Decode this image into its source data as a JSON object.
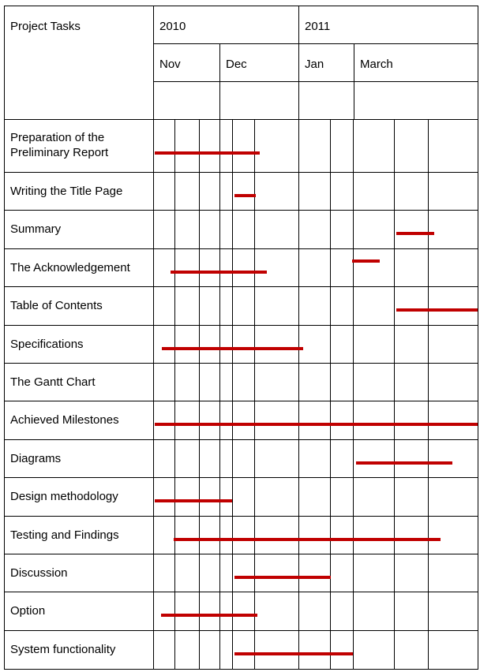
{
  "header": {
    "task_column_label": "Project Tasks",
    "years": [
      "2010",
      "2011"
    ],
    "months": [
      "Nov",
      "Dec",
      "Jan",
      "March"
    ]
  },
  "bar_color": "#c00000",
  "timeline_week_columns": 11,
  "tasks": [
    {
      "label": "Preparation of the Preliminary Report",
      "bars": [
        [
          0.07,
          5.13
        ]
      ]
    },
    {
      "label": "Writing the Title Page",
      "bars": [
        [
          4.1,
          5.04
        ]
      ]
    },
    {
      "label": "Summary",
      "bars": [
        [
          9.07,
          10.13
        ]
      ]
    },
    {
      "label": "The Acknowledgement",
      "bars": [
        [
          7.97,
          8.65
        ],
        [
          0.81,
          5.29
        ]
      ]
    },
    {
      "label": "Table of Contents",
      "bars": [
        [
          9.07,
          11
        ]
      ]
    },
    {
      "label": "Specifications",
      "bars": [
        [
          0.4,
          6.15
        ]
      ]
    },
    {
      "label": "The Gantt Chart",
      "bars": []
    },
    {
      "label": "Achieved Milestones",
      "bars": [
        [
          0.07,
          11
        ]
      ]
    },
    {
      "label": "Diagrams",
      "bars": [
        [
          8.08,
          10.5
        ]
      ]
    },
    {
      "label": "Design methodology",
      "bars": [
        [
          0.07,
          4
        ]
      ]
    },
    {
      "label": "Testing and Findings",
      "bars": [
        [
          0.96,
          10.25
        ]
      ]
    },
    {
      "label": "Discussion",
      "bars": [
        [
          4.1,
          7.02
        ]
      ]
    },
    {
      "label": "Option",
      "bars": [
        [
          0.37,
          5.07
        ]
      ]
    },
    {
      "label": "System functionality",
      "bars": [
        [
          4.1,
          8
        ]
      ]
    }
  ]
}
